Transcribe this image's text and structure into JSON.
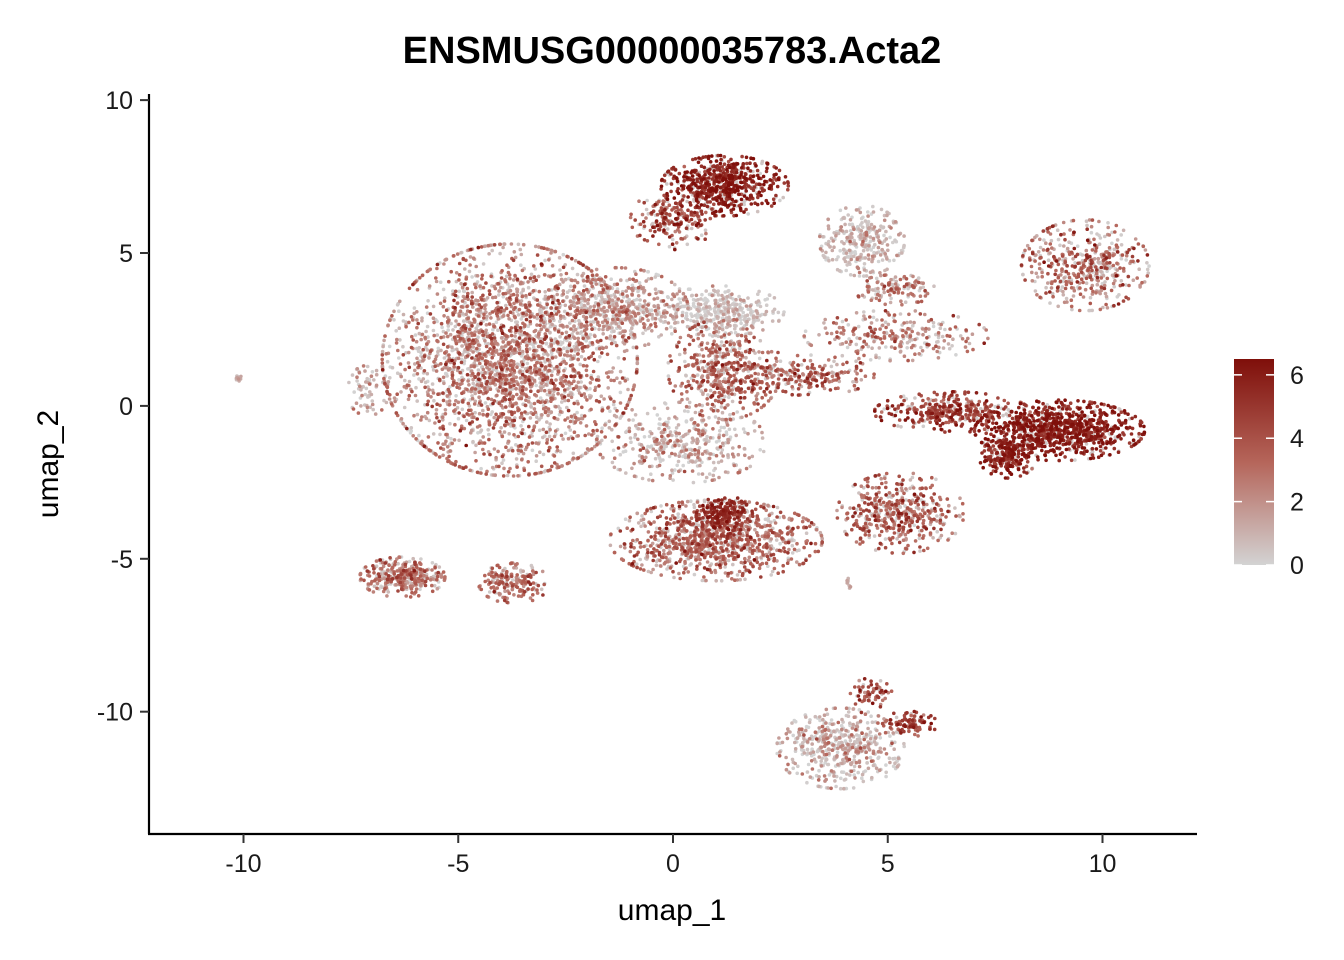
{
  "chart_data": {
    "type": "scatter",
    "title": "ENSMUSG00000035783.Acta2",
    "xlabel": "umap_1",
    "ylabel": "umap_2",
    "xlim": [
      -12.2,
      12.2
    ],
    "ylim": [
      -14.0,
      10.2
    ],
    "x_ticks": [
      -10,
      -5,
      0,
      5,
      10
    ],
    "y_ticks": [
      -10,
      -5,
      0,
      5,
      10
    ],
    "grid": false,
    "legend": {
      "placement": "right",
      "type": "colorbar",
      "min": 0,
      "max": 6.5,
      "ticks": [
        0,
        2,
        4,
        6
      ],
      "color_low": "#d3d3d3",
      "color_high": "#7f0f0a"
    },
    "clusters": [
      {
        "cx": -3.8,
        "cy": 1.5,
        "sx": 1.8,
        "sy": 2.3,
        "expr": 2.4,
        "spread": 1.4,
        "n": 2600
      },
      {
        "cx": -1.3,
        "cy": 3.2,
        "sx": 1.0,
        "sy": 0.8,
        "expr": 1.5,
        "spread": 1.2,
        "n": 500
      },
      {
        "cx": 1.1,
        "cy": 3.1,
        "sx": 0.9,
        "sy": 0.5,
        "expr": 0.6,
        "spread": 0.8,
        "n": 350
      },
      {
        "cx": 1.2,
        "cy": 1.2,
        "sx": 0.8,
        "sy": 1.0,
        "expr": 3.0,
        "spread": 1.2,
        "n": 500
      },
      {
        "cx": 1.2,
        "cy": 7.2,
        "sx": 0.9,
        "sy": 0.6,
        "expr": 5.6,
        "spread": 0.9,
        "n": 600
      },
      {
        "cx": 0.0,
        "cy": 6.1,
        "sx": 0.6,
        "sy": 0.6,
        "expr": 4.2,
        "spread": 1.2,
        "n": 200
      },
      {
        "cx": 4.4,
        "cy": 5.4,
        "sx": 0.6,
        "sy": 0.7,
        "expr": 0.8,
        "spread": 1.0,
        "n": 300
      },
      {
        "cx": 5.2,
        "cy": 3.8,
        "sx": 0.6,
        "sy": 0.3,
        "expr": 2.4,
        "spread": 1.2,
        "n": 120
      },
      {
        "cx": 9.6,
        "cy": 4.6,
        "sx": 0.9,
        "sy": 0.9,
        "expr": 2.8,
        "spread": 1.6,
        "n": 450
      },
      {
        "cx": 5.2,
        "cy": 2.3,
        "sx": 1.3,
        "sy": 0.5,
        "expr": 2.2,
        "spread": 1.4,
        "n": 250
      },
      {
        "cx": 9.0,
        "cy": -0.8,
        "sx": 1.2,
        "sy": 0.6,
        "expr": 5.6,
        "spread": 0.9,
        "n": 900
      },
      {
        "cx": 6.5,
        "cy": -0.2,
        "sx": 1.1,
        "sy": 0.4,
        "expr": 4.5,
        "spread": 1.1,
        "n": 350
      },
      {
        "cx": 7.8,
        "cy": -1.7,
        "sx": 0.4,
        "sy": 0.4,
        "expr": 5.4,
        "spread": 0.9,
        "n": 200
      },
      {
        "cx": 5.3,
        "cy": -3.5,
        "sx": 0.9,
        "sy": 0.8,
        "expr": 3.4,
        "spread": 1.2,
        "n": 450
      },
      {
        "cx": 1.0,
        "cy": -4.4,
        "sx": 1.5,
        "sy": 0.8,
        "expr": 3.0,
        "spread": 1.3,
        "n": 1000
      },
      {
        "cx": 1.2,
        "cy": -3.6,
        "sx": 0.4,
        "sy": 0.4,
        "expr": 5.2,
        "spread": 0.8,
        "n": 200
      },
      {
        "cx": 0.2,
        "cy": -1.2,
        "sx": 1.2,
        "sy": 0.8,
        "expr": 1.2,
        "spread": 1.2,
        "n": 400
      },
      {
        "cx": -6.3,
        "cy": -5.6,
        "sx": 0.6,
        "sy": 0.4,
        "expr": 2.6,
        "spread": 1.2,
        "n": 350
      },
      {
        "cx": -3.7,
        "cy": -5.8,
        "sx": 0.5,
        "sy": 0.4,
        "expr": 3.0,
        "spread": 1.2,
        "n": 170
      },
      {
        "cx": 3.9,
        "cy": -11.2,
        "sx": 0.9,
        "sy": 0.8,
        "expr": 1.0,
        "spread": 1.4,
        "n": 500
      },
      {
        "cx": 5.5,
        "cy": -10.4,
        "sx": 0.4,
        "sy": 0.25,
        "expr": 4.5,
        "spread": 1.0,
        "n": 90
      },
      {
        "cx": 4.6,
        "cy": -9.4,
        "sx": 0.3,
        "sy": 0.3,
        "expr": 3.5,
        "spread": 1.5,
        "n": 60
      },
      {
        "cx": -7.1,
        "cy": 0.5,
        "sx": 0.3,
        "sy": 0.5,
        "expr": 1.2,
        "spread": 1.0,
        "n": 60
      },
      {
        "cx": -10.1,
        "cy": 0.9,
        "sx": 0.08,
        "sy": 0.05,
        "expr": 1.0,
        "spread": 0.5,
        "n": 10
      },
      {
        "cx": 4.1,
        "cy": -5.8,
        "sx": 0.05,
        "sy": 0.1,
        "expr": 1.0,
        "spread": 0.5,
        "n": 8
      },
      {
        "cx": 3.2,
        "cy": 1.0,
        "sx": 0.9,
        "sy": 0.4,
        "expr": 3.2,
        "spread": 1.5,
        "n": 200
      }
    ]
  }
}
